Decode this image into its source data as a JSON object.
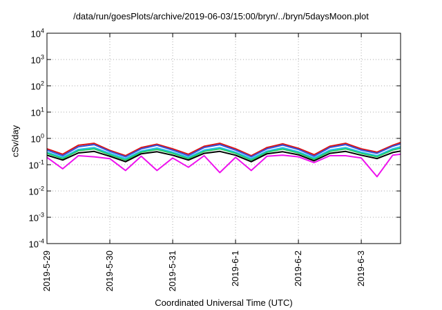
{
  "chart_data": {
    "type": "line",
    "title": "/data/run/goesPlots/archive/2019-06-03/15:00/bryn/../bryn/5daysMoon.plot",
    "xlabel": "Coordinated Universal Time (UTC)",
    "ylabel": "cSv/day",
    "yscale": "log",
    "ylim": [
      0.0001,
      10000
    ],
    "yticks": [
      {
        "base": "10",
        "exp": "-4"
      },
      {
        "base": "10",
        "exp": "-3"
      },
      {
        "base": "10",
        "exp": "-2"
      },
      {
        "base": "10",
        "exp": "-1"
      },
      {
        "base": "10",
        "exp": "0"
      },
      {
        "base": "10",
        "exp": "1"
      },
      {
        "base": "10",
        "exp": "2"
      },
      {
        "base": "10",
        "exp": "3"
      },
      {
        "base": "10",
        "exp": "4"
      }
    ],
    "xlim": [
      "2019-05-29 00:00",
      "2019-06-03 15:00"
    ],
    "xticks": [
      "2019-5-29",
      "2019-5-30",
      "2019-5-31",
      "2019-6-1",
      "2019-6-2",
      "2019-6-3"
    ],
    "grid": true,
    "series": [
      {
        "color": "#dd1111",
        "x": [
          "2019-05-29 00:00",
          "2019-05-29 06:00",
          "2019-05-29 12:00",
          "2019-05-29 18:00",
          "2019-05-30 00:00",
          "2019-05-30 06:00",
          "2019-05-30 12:00",
          "2019-05-30 18:00",
          "2019-05-31 00:00",
          "2019-05-31 06:00",
          "2019-05-31 12:00",
          "2019-05-31 18:00",
          "2019-06-01 00:00",
          "2019-06-01 06:00",
          "2019-06-01 12:00",
          "2019-06-01 18:00",
          "2019-06-02 00:00",
          "2019-06-02 06:00",
          "2019-06-02 12:00",
          "2019-06-02 18:00",
          "2019-06-03 00:00",
          "2019-06-03 06:00",
          "2019-06-03 12:00",
          "2019-06-03 15:00"
        ],
        "values": [
          0.4,
          0.25,
          0.55,
          0.65,
          0.35,
          0.22,
          0.45,
          0.6,
          0.4,
          0.25,
          0.5,
          0.65,
          0.4,
          0.22,
          0.45,
          0.62,
          0.42,
          0.24,
          0.5,
          0.65,
          0.4,
          0.3,
          0.55,
          0.7
        ]
      },
      {
        "color": "#3355dd",
        "x": [
          "2019-05-29 00:00",
          "2019-05-29 06:00",
          "2019-05-29 12:00",
          "2019-05-29 18:00",
          "2019-05-30 00:00",
          "2019-05-30 06:00",
          "2019-05-30 12:00",
          "2019-05-30 18:00",
          "2019-05-31 00:00",
          "2019-05-31 06:00",
          "2019-05-31 12:00",
          "2019-05-31 18:00",
          "2019-06-01 00:00",
          "2019-06-01 06:00",
          "2019-06-01 12:00",
          "2019-06-01 18:00",
          "2019-06-02 00:00",
          "2019-06-02 06:00",
          "2019-06-02 12:00",
          "2019-06-02 18:00",
          "2019-06-03 00:00",
          "2019-06-03 06:00",
          "2019-06-03 12:00",
          "2019-06-03 15:00"
        ],
        "values": [
          0.36,
          0.22,
          0.48,
          0.58,
          0.32,
          0.2,
          0.4,
          0.55,
          0.36,
          0.22,
          0.45,
          0.58,
          0.36,
          0.2,
          0.4,
          0.56,
          0.38,
          0.21,
          0.45,
          0.58,
          0.36,
          0.27,
          0.5,
          0.62
        ]
      },
      {
        "color": "#22bbee",
        "x": [
          "2019-05-29 00:00",
          "2019-05-29 06:00",
          "2019-05-29 12:00",
          "2019-05-29 18:00",
          "2019-05-30 00:00",
          "2019-05-30 06:00",
          "2019-05-30 12:00",
          "2019-05-30 18:00",
          "2019-05-31 00:00",
          "2019-05-31 06:00",
          "2019-05-31 12:00",
          "2019-05-31 18:00",
          "2019-06-01 00:00",
          "2019-06-01 06:00",
          "2019-06-01 12:00",
          "2019-06-01 18:00",
          "2019-06-02 00:00",
          "2019-06-02 06:00",
          "2019-06-02 12:00",
          "2019-06-02 18:00",
          "2019-06-03 00:00",
          "2019-06-03 06:00",
          "2019-06-03 12:00",
          "2019-06-03 15:00"
        ],
        "values": [
          0.3,
          0.19,
          0.38,
          0.45,
          0.27,
          0.17,
          0.33,
          0.43,
          0.3,
          0.19,
          0.36,
          0.45,
          0.3,
          0.17,
          0.33,
          0.44,
          0.31,
          0.18,
          0.36,
          0.45,
          0.3,
          0.22,
          0.4,
          0.48
        ]
      },
      {
        "color": "#22cc66",
        "x": [
          "2019-05-29 00:00",
          "2019-05-29 06:00",
          "2019-05-29 12:00",
          "2019-05-29 18:00",
          "2019-05-30 00:00",
          "2019-05-30 06:00",
          "2019-05-30 12:00",
          "2019-05-30 18:00",
          "2019-05-31 00:00",
          "2019-05-31 06:00",
          "2019-05-31 12:00",
          "2019-05-31 18:00",
          "2019-06-01 00:00",
          "2019-06-01 06:00",
          "2019-06-01 12:00",
          "2019-06-01 18:00",
          "2019-06-02 00:00",
          "2019-06-02 06:00",
          "2019-06-02 12:00",
          "2019-06-02 18:00",
          "2019-06-03 00:00",
          "2019-06-03 06:00",
          "2019-06-03 12:00",
          "2019-06-03 15:00"
        ],
        "values": [
          0.27,
          0.17,
          0.34,
          0.4,
          0.24,
          0.15,
          0.3,
          0.38,
          0.27,
          0.17,
          0.32,
          0.4,
          0.27,
          0.15,
          0.3,
          0.39,
          0.28,
          0.16,
          0.32,
          0.4,
          0.27,
          0.2,
          0.36,
          0.42
        ]
      },
      {
        "color": "#000000",
        "x": [
          "2019-05-29 00:00",
          "2019-05-29 06:00",
          "2019-05-29 12:00",
          "2019-05-29 18:00",
          "2019-05-30 00:00",
          "2019-05-30 06:00",
          "2019-05-30 12:00",
          "2019-05-30 18:00",
          "2019-05-31 00:00",
          "2019-05-31 06:00",
          "2019-05-31 12:00",
          "2019-05-31 18:00",
          "2019-06-01 00:00",
          "2019-06-01 06:00",
          "2019-06-01 12:00",
          "2019-06-01 18:00",
          "2019-06-02 00:00",
          "2019-06-02 06:00",
          "2019-06-02 12:00",
          "2019-06-02 18:00",
          "2019-06-03 00:00",
          "2019-06-03 06:00",
          "2019-06-03 12:00",
          "2019-06-03 15:00"
        ],
        "values": [
          0.23,
          0.15,
          0.28,
          0.32,
          0.21,
          0.13,
          0.26,
          0.31,
          0.23,
          0.15,
          0.27,
          0.32,
          0.23,
          0.13,
          0.26,
          0.31,
          0.24,
          0.14,
          0.27,
          0.32,
          0.23,
          0.17,
          0.29,
          0.33
        ]
      },
      {
        "color": "#ee11ee",
        "x": [
          "2019-05-29 00:00",
          "2019-05-29 06:00",
          "2019-05-29 12:00",
          "2019-05-29 18:00",
          "2019-05-30 00:00",
          "2019-05-30 06:00",
          "2019-05-30 12:00",
          "2019-05-30 18:00",
          "2019-05-31 00:00",
          "2019-05-31 06:00",
          "2019-05-31 12:00",
          "2019-05-31 18:00",
          "2019-06-01 00:00",
          "2019-06-01 06:00",
          "2019-06-01 12:00",
          "2019-06-01 18:00",
          "2019-06-02 00:00",
          "2019-06-02 06:00",
          "2019-06-02 12:00",
          "2019-06-02 18:00",
          "2019-06-03 00:00",
          "2019-06-03 06:00",
          "2019-06-03 12:00",
          "2019-06-03 15:00"
        ],
        "values": [
          0.19,
          0.07,
          0.22,
          0.2,
          0.17,
          0.06,
          0.21,
          0.06,
          0.18,
          0.08,
          0.22,
          0.05,
          0.19,
          0.06,
          0.21,
          0.23,
          0.2,
          0.12,
          0.22,
          0.22,
          0.18,
          0.035,
          0.23,
          0.25
        ]
      }
    ]
  }
}
